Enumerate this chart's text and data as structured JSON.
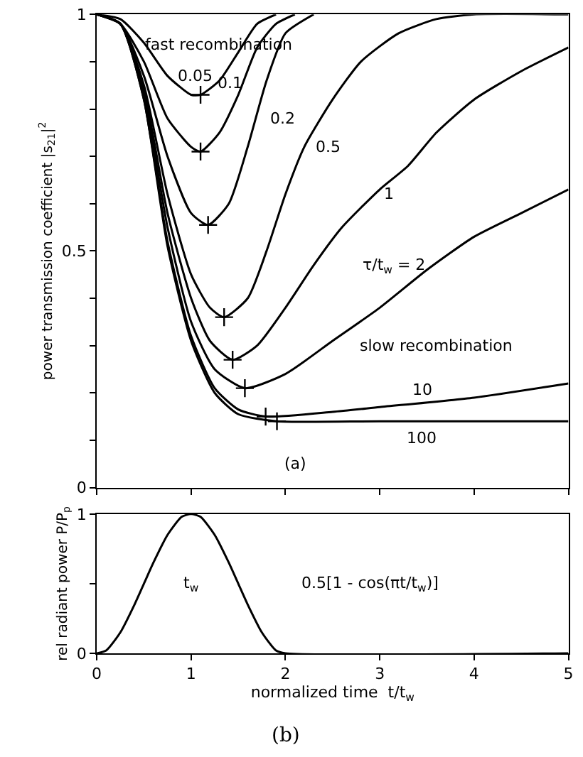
{
  "chart_data": [
    {
      "type": "line",
      "ylabel": "power transmission coefficient |s$_{21}$|$^{2}$",
      "xlim": [
        0,
        5
      ],
      "ylim": [
        0,
        1
      ],
      "xticks": [
        0,
        1,
        2,
        3,
        4,
        5
      ],
      "yticks": [
        0,
        {
          "value": 0.1,
          "label": null
        },
        {
          "value": 0.2,
          "label": null
        },
        {
          "value": 0.3,
          "label": null
        },
        {
          "value": 0.4,
          "label": null
        },
        {
          "value": 0.5,
          "label": "0.5"
        },
        {
          "value": 0.6,
          "label": null
        },
        {
          "value": 0.7,
          "label": null
        },
        {
          "value": 0.8,
          "label": null
        },
        {
          "value": 0.9,
          "label": null
        },
        1
      ],
      "tick_labels": "y",
      "marker": "none",
      "line_style": "solid",
      "series": [
        {
          "color": "#000000",
          "x": [
            0,
            0.25,
            0.5,
            0.75,
            1.0,
            1.1,
            1.3,
            1.5,
            1.7,
            1.9
          ],
          "values": [
            1,
            0.99,
            0.94,
            0.87,
            0.83,
            0.83,
            0.86,
            0.92,
            0.98,
            1.0
          ]
        },
        {
          "color": "#000000",
          "x": [
            0,
            0.25,
            0.5,
            0.75,
            1.0,
            1.1,
            1.3,
            1.5,
            1.7,
            1.9,
            2.1
          ],
          "values": [
            1,
            0.98,
            0.9,
            0.78,
            0.72,
            0.71,
            0.75,
            0.83,
            0.93,
            0.98,
            1.0
          ]
        },
        {
          "color": "#000000",
          "x": [
            0,
            0.25,
            0.5,
            0.75,
            1.0,
            1.18,
            1.4,
            1.6,
            1.8,
            2.0,
            2.3
          ],
          "values": [
            1,
            0.98,
            0.87,
            0.7,
            0.58,
            0.555,
            0.6,
            0.72,
            0.86,
            0.96,
            1.0
          ]
        },
        {
          "color": "#000000",
          "x": [
            0,
            0.25,
            0.5,
            0.75,
            1.0,
            1.2,
            1.35,
            1.6,
            1.8,
            2.0,
            2.2,
            2.5,
            2.8,
            3.2,
            3.6,
            4.0,
            5
          ],
          "values": [
            1,
            0.98,
            0.85,
            0.62,
            0.45,
            0.38,
            0.36,
            0.4,
            0.5,
            0.62,
            0.72,
            0.82,
            0.9,
            0.96,
            0.99,
            1.0,
            1.0
          ]
        },
        {
          "color": "#000000",
          "x": [
            0,
            0.25,
            0.5,
            0.75,
            1.0,
            1.2,
            1.44,
            1.7,
            2.0,
            2.3,
            2.6,
            3.0,
            3.3,
            3.6,
            4.0,
            4.5,
            5
          ],
          "values": [
            1,
            0.98,
            0.84,
            0.58,
            0.4,
            0.31,
            0.27,
            0.3,
            0.38,
            0.47,
            0.55,
            0.63,
            0.68,
            0.75,
            0.82,
            0.88,
            0.93
          ]
        },
        {
          "color": "#000000",
          "x": [
            0,
            0.25,
            0.5,
            0.75,
            1.0,
            1.25,
            1.57,
            2.0,
            2.5,
            3.0,
            3.5,
            4.0,
            4.5,
            5
          ],
          "values": [
            1,
            0.98,
            0.83,
            0.55,
            0.35,
            0.25,
            0.21,
            0.24,
            0.31,
            0.38,
            0.46,
            0.53,
            0.58,
            0.63
          ]
        },
        {
          "color": "#000000",
          "x": [
            0,
            0.25,
            0.5,
            0.75,
            1.0,
            1.25,
            1.5,
            1.79,
            2.5,
            3.0,
            4.0,
            5
          ],
          "values": [
            1,
            0.98,
            0.82,
            0.52,
            0.32,
            0.21,
            0.165,
            0.15,
            0.16,
            0.17,
            0.19,
            0.22
          ]
        },
        {
          "color": "#000000",
          "x": [
            0,
            0.25,
            0.5,
            0.75,
            1.0,
            1.25,
            1.5,
            1.91,
            3.0,
            5
          ],
          "values": [
            1,
            0.98,
            0.82,
            0.51,
            0.31,
            0.2,
            0.155,
            0.14,
            0.14,
            0.14
          ]
        },
        {
          "type": "scatter",
          "marker": "cross",
          "color": "#000000",
          "x": [
            1.1,
            1.1,
            1.18,
            1.35,
            1.44,
            1.57,
            1.79,
            1.91
          ],
          "values": [
            0.83,
            0.71,
            0.555,
            0.36,
            0.27,
            0.21,
            0.15,
            0.14
          ]
        }
      ],
      "annotations": [
        "fast recombination",
        "0.05",
        "0.1",
        "0.2",
        "0.5",
        "1",
        "τ/t$_{w}$ = 2",
        "slow recombination",
        "10",
        "100",
        "(a)"
      ]
    },
    {
      "type": "line",
      "xlabel": "normalized time  t/t$_{w}$",
      "ylabel": "rel radiant power P/P$_{p}$",
      "xlim": [
        0,
        5
      ],
      "ylim": [
        0,
        1
      ],
      "xticks": [
        0,
        1,
        2,
        3,
        4,
        5
      ],
      "yticks": [
        0,
        {
          "value": 0.5,
          "label": null
        },
        1
      ],
      "marker": "none",
      "line_style": "solid",
      "series": [
        {
          "color": "#000000",
          "x": [
            0,
            0.1,
            0.25,
            0.4,
            0.5,
            0.6,
            0.75,
            0.9,
            1.0,
            1.1,
            1.25,
            1.4,
            1.5,
            1.6,
            1.75,
            1.9,
            2.0,
            5
          ],
          "values": [
            0,
            0.02,
            0.15,
            0.35,
            0.5,
            0.65,
            0.85,
            0.98,
            1.0,
            0.98,
            0.85,
            0.65,
            0.5,
            0.35,
            0.15,
            0.02,
            0,
            0
          ]
        }
      ],
      "annotations": [
        "t$_{w}$",
        "0.5[1 - cos(πt/t$_{w}$)]",
        "(b)"
      ]
    }
  ]
}
